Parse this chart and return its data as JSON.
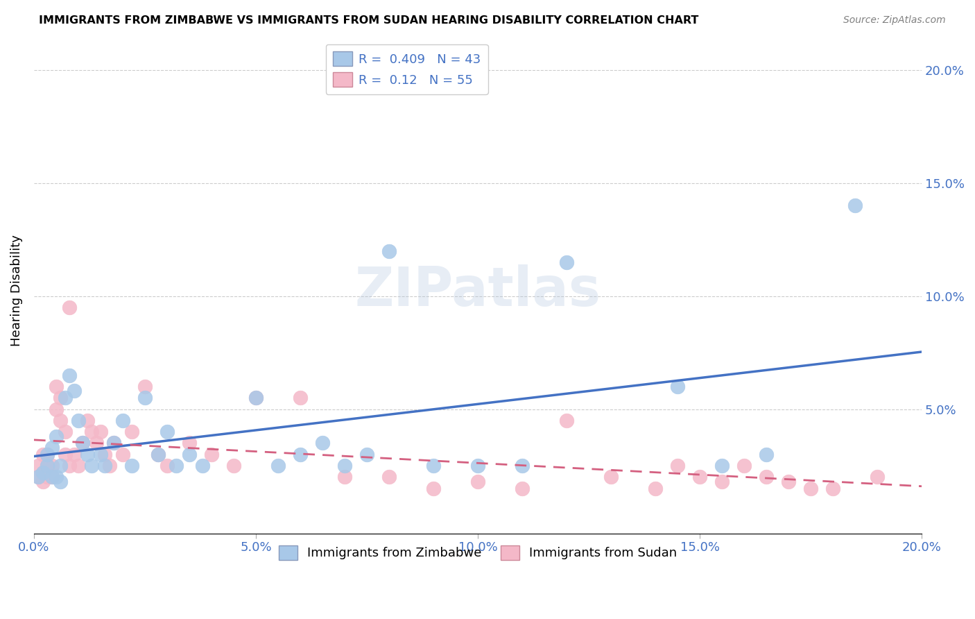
{
  "title": "IMMIGRANTS FROM ZIMBABWE VS IMMIGRANTS FROM SUDAN HEARING DISABILITY CORRELATION CHART",
  "source": "Source: ZipAtlas.com",
  "ylabel": "Hearing Disability",
  "xlim": [
    0.0,
    0.2
  ],
  "ylim": [
    -0.005,
    0.21
  ],
  "xtick_vals": [
    0.0,
    0.05,
    0.1,
    0.15,
    0.2
  ],
  "xtick_labels": [
    "0.0%",
    "5.0%",
    "10.0%",
    "15.0%",
    "20.0%"
  ],
  "ytick_vals": [
    0.05,
    0.1,
    0.15,
    0.2
  ],
  "ytick_labels": [
    "5.0%",
    "10.0%",
    "15.0%",
    "20.0%"
  ],
  "zimbabwe_color": "#a8c8e8",
  "sudan_color": "#f4b8c8",
  "zimbabwe_line_color": "#4472c4",
  "sudan_line_color": "#d46080",
  "label_color": "#4472c4",
  "zimbabwe_R": 0.409,
  "zimbabwe_N": 43,
  "sudan_R": 0.12,
  "sudan_N": 55,
  "legend_label_zimbabwe": "Immigrants from Zimbabwe",
  "legend_label_sudan": "Immigrants from Sudan",
  "watermark": "ZIPatlas",
  "zimbabwe_x": [
    0.001,
    0.002,
    0.003,
    0.003,
    0.004,
    0.004,
    0.005,
    0.005,
    0.006,
    0.006,
    0.007,
    0.008,
    0.009,
    0.01,
    0.011,
    0.012,
    0.013,
    0.015,
    0.016,
    0.018,
    0.02,
    0.022,
    0.025,
    0.028,
    0.03,
    0.032,
    0.035,
    0.038,
    0.05,
    0.055,
    0.06,
    0.065,
    0.07,
    0.075,
    0.08,
    0.09,
    0.1,
    0.11,
    0.12,
    0.145,
    0.155,
    0.165,
    0.185
  ],
  "zimbabwe_y": [
    0.02,
    0.022,
    0.025,
    0.03,
    0.02,
    0.033,
    0.038,
    0.02,
    0.025,
    0.018,
    0.055,
    0.065,
    0.058,
    0.045,
    0.035,
    0.03,
    0.025,
    0.03,
    0.025,
    0.035,
    0.045,
    0.025,
    0.055,
    0.03,
    0.04,
    0.025,
    0.03,
    0.025,
    0.055,
    0.025,
    0.03,
    0.035,
    0.025,
    0.03,
    0.12,
    0.025,
    0.025,
    0.025,
    0.115,
    0.06,
    0.025,
    0.03,
    0.14
  ],
  "sudan_x": [
    0.001,
    0.001,
    0.002,
    0.002,
    0.002,
    0.003,
    0.003,
    0.003,
    0.004,
    0.004,
    0.005,
    0.005,
    0.006,
    0.006,
    0.007,
    0.007,
    0.008,
    0.008,
    0.009,
    0.01,
    0.011,
    0.012,
    0.013,
    0.014,
    0.015,
    0.016,
    0.017,
    0.018,
    0.02,
    0.022,
    0.025,
    0.028,
    0.03,
    0.035,
    0.04,
    0.045,
    0.05,
    0.06,
    0.07,
    0.08,
    0.09,
    0.1,
    0.11,
    0.12,
    0.13,
    0.14,
    0.15,
    0.16,
    0.17,
    0.18,
    0.145,
    0.155,
    0.165,
    0.175,
    0.19
  ],
  "sudan_y": [
    0.02,
    0.025,
    0.022,
    0.018,
    0.03,
    0.025,
    0.02,
    0.03,
    0.02,
    0.025,
    0.06,
    0.05,
    0.055,
    0.045,
    0.04,
    0.03,
    0.095,
    0.025,
    0.03,
    0.025,
    0.035,
    0.045,
    0.04,
    0.035,
    0.04,
    0.03,
    0.025,
    0.035,
    0.03,
    0.04,
    0.06,
    0.03,
    0.025,
    0.035,
    0.03,
    0.025,
    0.055,
    0.055,
    0.02,
    0.02,
    0.015,
    0.018,
    0.015,
    0.045,
    0.02,
    0.015,
    0.02,
    0.025,
    0.018,
    0.015,
    0.025,
    0.018,
    0.02,
    0.015,
    0.02
  ]
}
